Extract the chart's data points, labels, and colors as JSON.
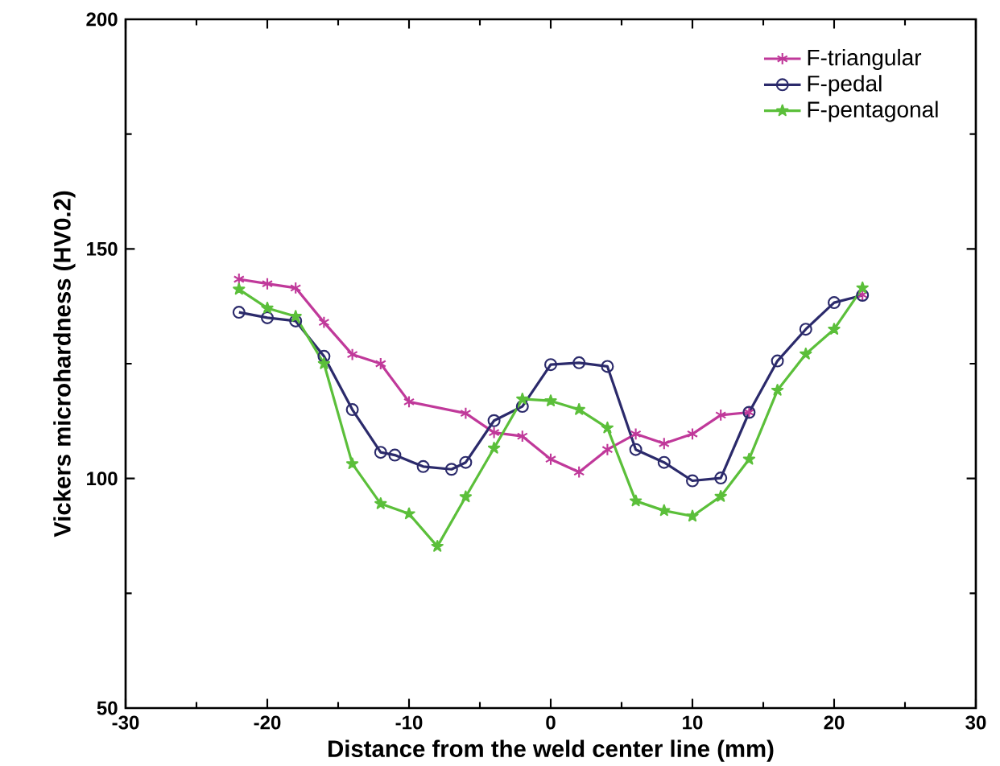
{
  "chart_data": {
    "type": "line",
    "xlabel": "Distance from the weld center line (mm)",
    "ylabel": "Vickers microhardness (HV0.2)",
    "xlim": [
      -30,
      30
    ],
    "xticks": [
      -30,
      -20,
      -10,
      0,
      10,
      20,
      30
    ],
    "ylim": [
      50,
      200
    ],
    "yticks": [
      50,
      100,
      150,
      200
    ],
    "legend": "top right",
    "grid": false,
    "line_style": "solid",
    "series": [
      {
        "name": "F-triangular",
        "color": "#c0399a",
        "marker": "cross",
        "x": [
          -22,
          -20,
          -18,
          -16,
          -14,
          -12,
          -10,
          -6,
          -4,
          -2,
          0,
          2,
          4,
          6,
          8,
          10,
          12,
          14,
          16,
          18,
          20,
          22
        ],
        "values": [
          143.4,
          142.4,
          141.5,
          134,
          127,
          125,
          116.7,
          114.2,
          110,
          109.2,
          104.2,
          101.4,
          106.3,
          109.7,
          107.6,
          109.7,
          113.8,
          114.4,
          null,
          null,
          null,
          140
        ]
      },
      {
        "name": "F-pedal",
        "color": "#2b2a6b",
        "marker": "circle",
        "x": [
          -22,
          -20,
          -18,
          -16,
          -14,
          -12,
          -11,
          -9,
          -7,
          -6,
          -4,
          -2,
          0,
          2,
          4,
          6,
          8,
          10,
          12,
          14,
          16,
          18,
          20,
          22
        ],
        "values": [
          136.2,
          135,
          134.3,
          126.6,
          115,
          105.7,
          105.1,
          102.6,
          102,
          103.5,
          112.6,
          115.7,
          124.8,
          125.2,
          124.4,
          106.3,
          103.5,
          99.5,
          100.1,
          114.4,
          125.6,
          132.5,
          138.3,
          139.9
        ]
      },
      {
        "name": "F-pentagonal",
        "color": "#5bbf3a",
        "marker": "star",
        "x": [
          -22,
          -20,
          -18,
          -16,
          -14,
          -12,
          -10,
          -8,
          -6,
          -4,
          -2,
          0,
          2,
          4,
          6,
          8,
          10,
          12,
          14,
          16,
          18,
          20,
          22
        ],
        "values": [
          141.2,
          137.1,
          135.3,
          125,
          103.2,
          94.5,
          92.3,
          85.2,
          96,
          106.6,
          117.3,
          116.9,
          115,
          111,
          95.1,
          93,
          91.8,
          96.1,
          104.2,
          119.2,
          127.1,
          132.5,
          141.5
        ]
      }
    ]
  }
}
